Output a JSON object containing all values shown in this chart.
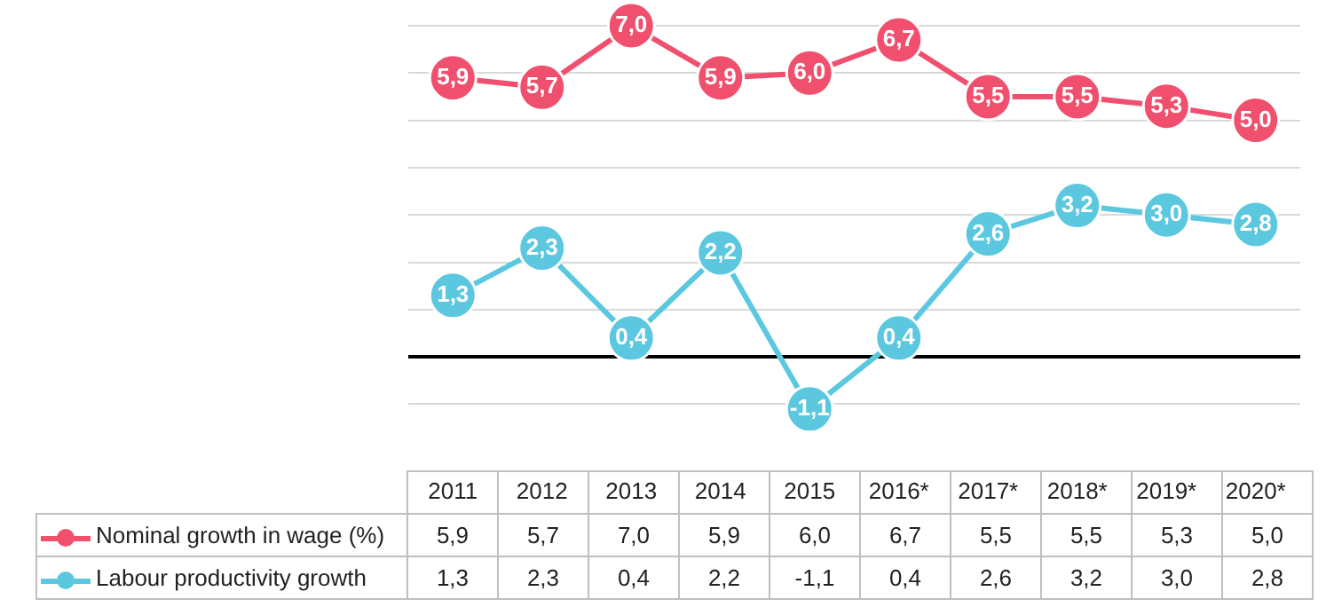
{
  "chart_data": {
    "type": "line",
    "categories": [
      "2011",
      "2012",
      "2013",
      "2014",
      "2015",
      "2016*",
      "2017*",
      "2018*",
      "2019*",
      "2020*"
    ],
    "series": [
      {
        "name": "Nominal growth in wage (%)",
        "color": "#f0506e",
        "values": [
          5.9,
          5.7,
          7.0,
          5.9,
          6.0,
          6.7,
          5.5,
          5.5,
          5.3,
          5.0
        ],
        "value_labels": [
          "5,9",
          "5,7",
          "7,0",
          "5,9",
          "6,0",
          "6,7",
          "5,5",
          "5,5",
          "5,3",
          "5,0"
        ]
      },
      {
        "name": "Labour productivity growth",
        "color": "#5bc8e0",
        "values": [
          1.3,
          2.3,
          0.4,
          2.2,
          -1.1,
          0.4,
          2.6,
          3.2,
          3.0,
          2.8
        ],
        "value_labels": [
          "1,3",
          "2,3",
          "0,4",
          "2,2",
          "-1,1",
          "0,4",
          "2,6",
          "3,2",
          "3,0",
          "2,8"
        ]
      }
    ],
    "grid": "y",
    "tick_labels": "x",
    "legend": "bottom",
    "marker": "circle",
    "line_style": "solid"
  }
}
